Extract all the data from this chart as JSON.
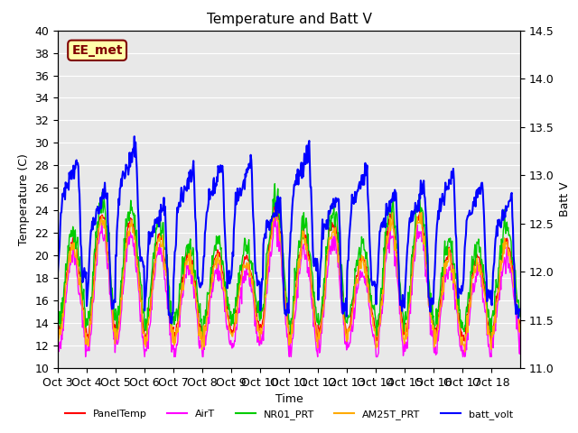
{
  "title": "Temperature and Batt V",
  "xlabel": "Time",
  "ylabel_left": "Temperature (C)",
  "ylabel_right": "Batt V",
  "ylim_left": [
    10,
    40
  ],
  "ylim_right": [
    11.0,
    14.5
  ],
  "background_color": "#ffffff",
  "plot_bg_color": "#e8e8e8",
  "grid_color": "#ffffff",
  "x_tick_labels": [
    "Oct 3",
    "Oct 4",
    "Oct 5",
    "Oct 6",
    "Oct 7",
    "Oct 8",
    "Oct 9",
    "Oct 10",
    "Oct 11",
    "Oct 12",
    "Oct 13",
    "Oct 14",
    "Oct 15",
    "Oct 16",
    "Oct 17",
    "Oct 18"
  ],
  "annotation_text": "EE_met",
  "annotation_bg": "#ffffaa",
  "annotation_border": "#800000",
  "annotation_text_color": "#800000",
  "legend_entries": [
    "PanelTemp",
    "AirT",
    "NR01_PRT",
    "AM25T_PRT",
    "batt_volt"
  ],
  "legend_colors": [
    "#ff0000",
    "#ff00ff",
    "#00cc00",
    "#ffaa00",
    "#0000ff"
  ],
  "line_widths": [
    1.0,
    1.0,
    1.0,
    1.0,
    1.5
  ],
  "n_days": 16,
  "pts_per_day": 48
}
